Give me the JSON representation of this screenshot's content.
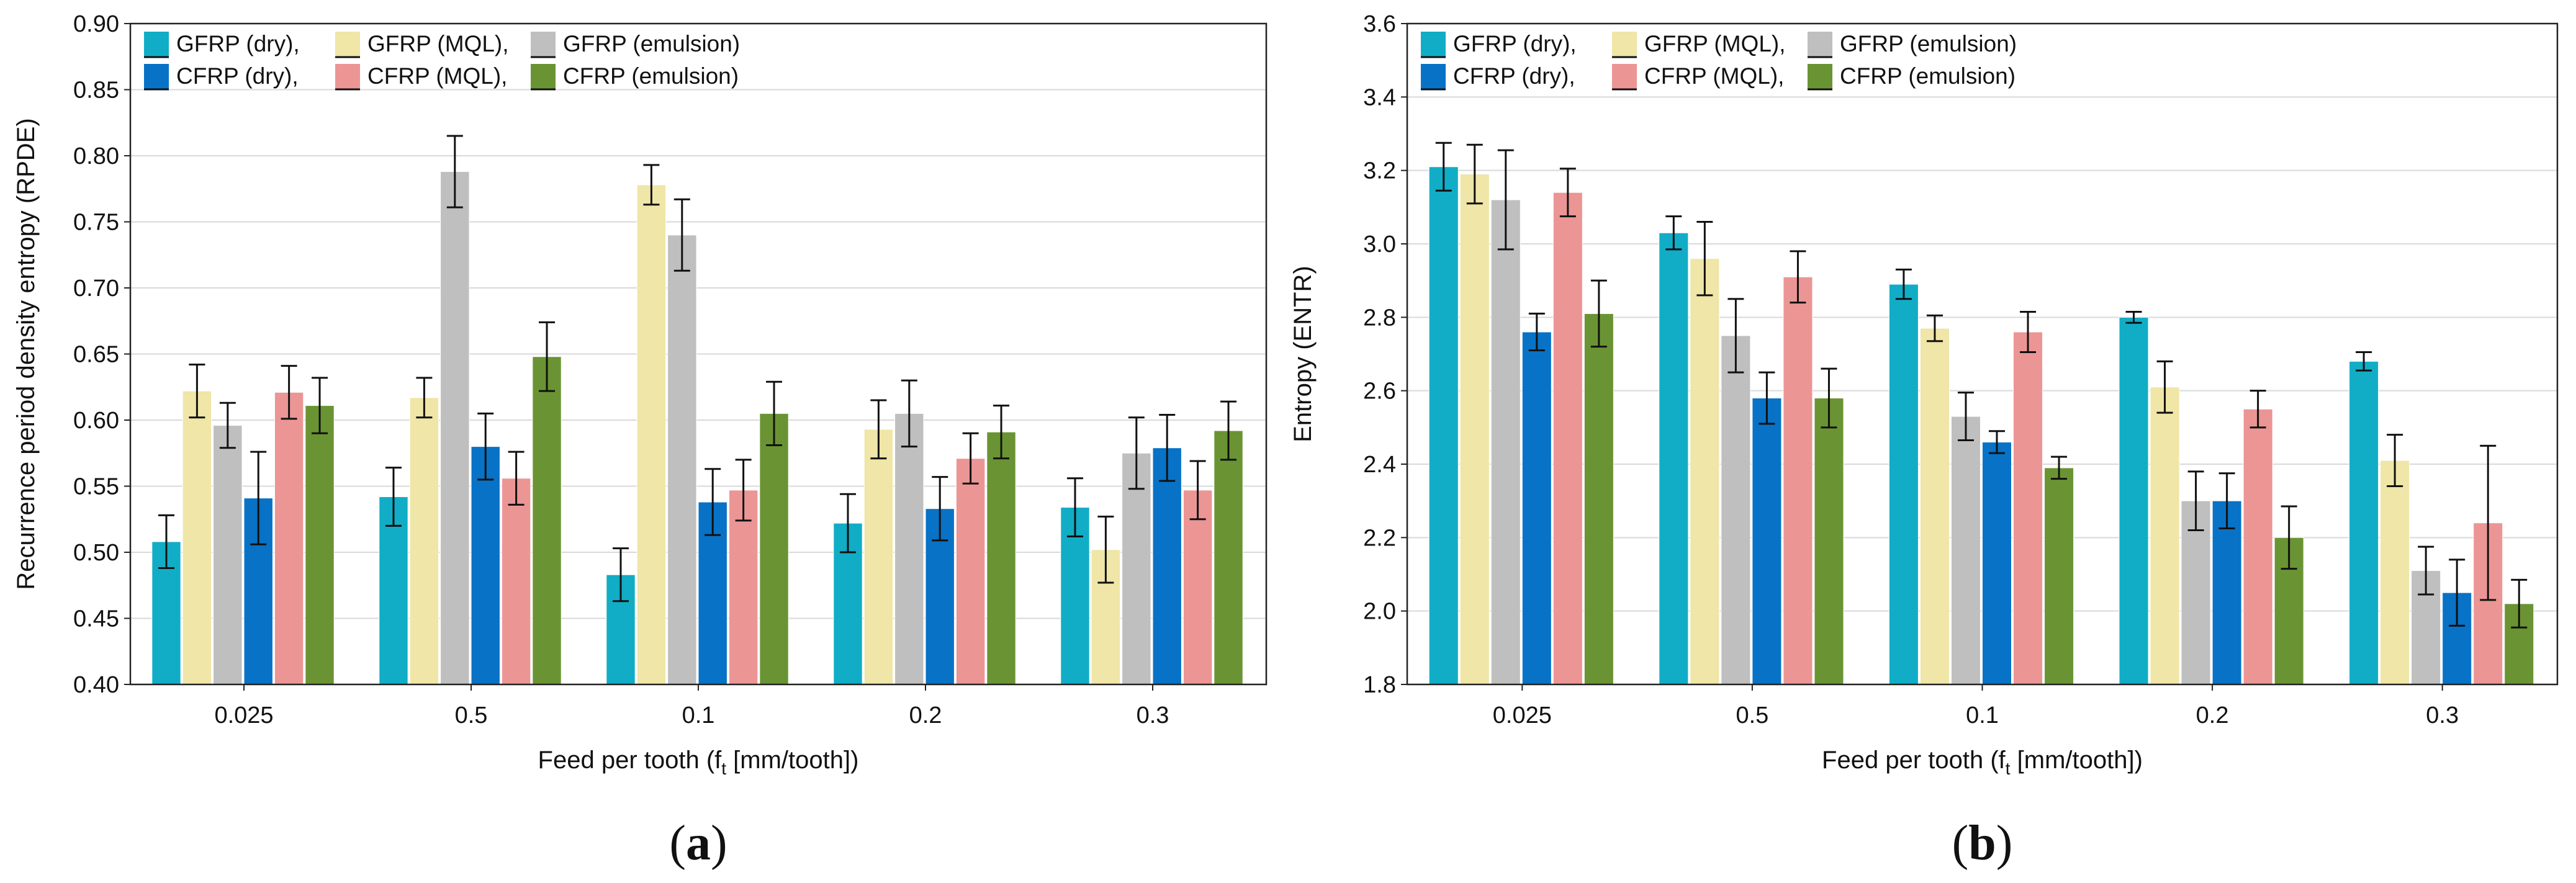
{
  "colors": {
    "GFRP (dry)": "#11adc6",
    "GFRP (MQL)": "#efe6a7",
    "GFRP (emulsion)": "#bfbfbf",
    "CFRP (dry)": "#0872c6",
    "CFRP (MQL)": "#ec9595",
    "CFRP (emulsion)": "#6a9433"
  },
  "legend": {
    "rows": [
      [
        "GFRP (dry),",
        "GFRP (MQL),",
        "GFRP (emulsion)"
      ],
      [
        "CFRP (dry),",
        "CFRP (MQL),",
        "CFRP (emulsion)"
      ]
    ]
  },
  "chart_data": [
    {
      "type": "bar",
      "panel_label": "a",
      "categories": [
        "0.025",
        "0.5",
        "0.1",
        "0.2",
        "0.3"
      ],
      "xlabel": "Feed per tooth (f",
      "xlabel_sub": "t",
      "xlabel_suffix": " [mm/tooth])",
      "ylabel": "Recurrence period density entropy (RPDE)",
      "ylim": [
        0.4,
        0.9
      ],
      "yticks": [
        "0.40",
        "0.45",
        "0.50",
        "0.55",
        "0.60",
        "0.65",
        "0.70",
        "0.75",
        "0.80",
        "0.85",
        "0.90"
      ],
      "grid": true,
      "legend_position": "top-left",
      "series": [
        {
          "name": "GFRP (dry)",
          "values": [
            0.508,
            0.542,
            0.483,
            0.522,
            0.534
          ],
          "errors": [
            0.02,
            0.022,
            0.02,
            0.022,
            0.022
          ]
        },
        {
          "name": "GFRP (MQL)",
          "values": [
            0.622,
            0.617,
            0.778,
            0.593,
            0.502
          ],
          "errors": [
            0.02,
            0.015,
            0.015,
            0.022,
            0.025
          ]
        },
        {
          "name": "GFRP (emulsion)",
          "values": [
            0.596,
            0.788,
            0.74,
            0.605,
            0.575
          ],
          "errors": [
            0.017,
            0.027,
            0.027,
            0.025,
            0.027
          ]
        },
        {
          "name": "CFRP (dry)",
          "values": [
            0.541,
            0.58,
            0.538,
            0.533,
            0.579
          ],
          "errors": [
            0.035,
            0.025,
            0.025,
            0.024,
            0.025
          ]
        },
        {
          "name": "CFRP (MQL)",
          "values": [
            0.621,
            0.556,
            0.547,
            0.571,
            0.547
          ],
          "errors": [
            0.02,
            0.02,
            0.023,
            0.019,
            0.022
          ]
        },
        {
          "name": "CFRP (emulsion)",
          "values": [
            0.611,
            0.648,
            0.605,
            0.591,
            0.592
          ],
          "errors": [
            0.021,
            0.026,
            0.024,
            0.02,
            0.022
          ]
        }
      ]
    },
    {
      "type": "bar",
      "panel_label": "b",
      "categories": [
        "0.025",
        "0.5",
        "0.1",
        "0.2",
        "0.3"
      ],
      "xlabel": "Feed per tooth (f",
      "xlabel_sub": "t",
      "xlabel_suffix": " [mm/tooth])",
      "ylabel": "Entropy (ENTR)",
      "ylim": [
        1.8,
        3.6
      ],
      "yticks": [
        "1.8",
        "2.0",
        "2.2",
        "2.4",
        "2.6",
        "2.8",
        "3.0",
        "3.2",
        "3.4",
        "3.6"
      ],
      "grid": true,
      "legend_position": "top-left",
      "series": [
        {
          "name": "GFRP (dry)",
          "values": [
            3.21,
            3.03,
            2.89,
            2.8,
            2.68
          ],
          "errors": [
            0.065,
            0.045,
            0.04,
            0.015,
            0.025
          ]
        },
        {
          "name": "GFRP (MQL)",
          "values": [
            3.19,
            2.96,
            2.77,
            2.61,
            2.41
          ],
          "errors": [
            0.08,
            0.1,
            0.035,
            0.07,
            0.07
          ]
        },
        {
          "name": "GFRP (emulsion)",
          "values": [
            3.12,
            2.75,
            2.53,
            2.3,
            2.11
          ],
          "errors": [
            0.135,
            0.1,
            0.065,
            0.08,
            0.065
          ]
        },
        {
          "name": "CFRP (dry)",
          "values": [
            2.76,
            2.58,
            2.46,
            2.3,
            2.05
          ],
          "errors": [
            0.05,
            0.07,
            0.03,
            0.075,
            0.09
          ]
        },
        {
          "name": "CFRP (MQL)",
          "values": [
            3.14,
            2.91,
            2.76,
            2.55,
            2.24
          ],
          "errors": [
            0.065,
            0.07,
            0.055,
            0.05,
            0.21
          ]
        },
        {
          "name": "CFRP (emulsion)",
          "values": [
            2.81,
            2.58,
            2.39,
            2.2,
            2.02
          ],
          "errors": [
            0.09,
            0.08,
            0.03,
            0.085,
            0.065
          ]
        }
      ]
    }
  ]
}
